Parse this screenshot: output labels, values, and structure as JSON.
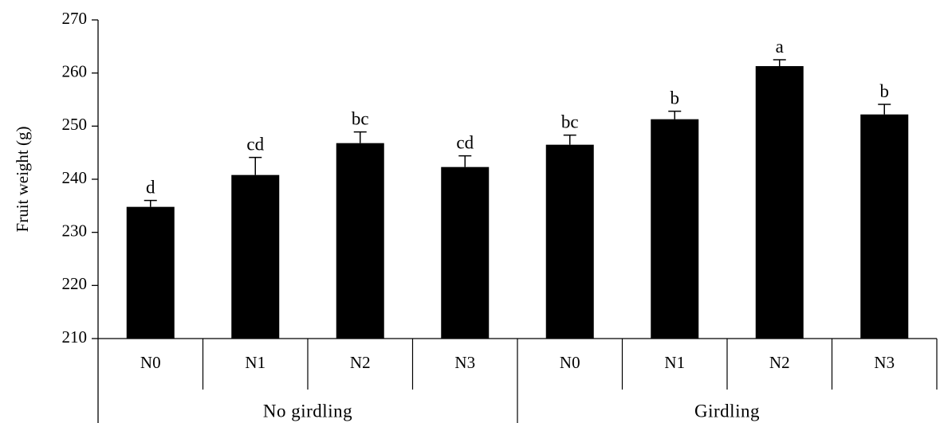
{
  "chart_data": {
    "type": "bar",
    "ylabel": "Fruit weight (g)",
    "ylim": [
      210,
      270
    ],
    "yticks": [
      210,
      220,
      230,
      240,
      250,
      260,
      270
    ],
    "grid": false,
    "bar_color": "#000000",
    "groups": [
      {
        "label": "No girdling",
        "bars": [
          {
            "category": "N0",
            "value": 234.8,
            "error": 1.2,
            "letter": "d"
          },
          {
            "category": "N1",
            "value": 240.8,
            "error": 3.3,
            "letter": "cd"
          },
          {
            "category": "N2",
            "value": 246.8,
            "error": 2.1,
            "letter": "bc"
          },
          {
            "category": "N3",
            "value": 242.3,
            "error": 2.1,
            "letter": "cd"
          }
        ]
      },
      {
        "label": "Girdling",
        "bars": [
          {
            "category": "N0",
            "value": 246.5,
            "error": 1.8,
            "letter": "bc"
          },
          {
            "category": "N1",
            "value": 251.3,
            "error": 1.5,
            "letter": "b"
          },
          {
            "category": "N2",
            "value": 261.3,
            "error": 1.2,
            "letter": "a"
          },
          {
            "category": "N3",
            "value": 252.2,
            "error": 1.9,
            "letter": "b"
          }
        ]
      }
    ]
  }
}
